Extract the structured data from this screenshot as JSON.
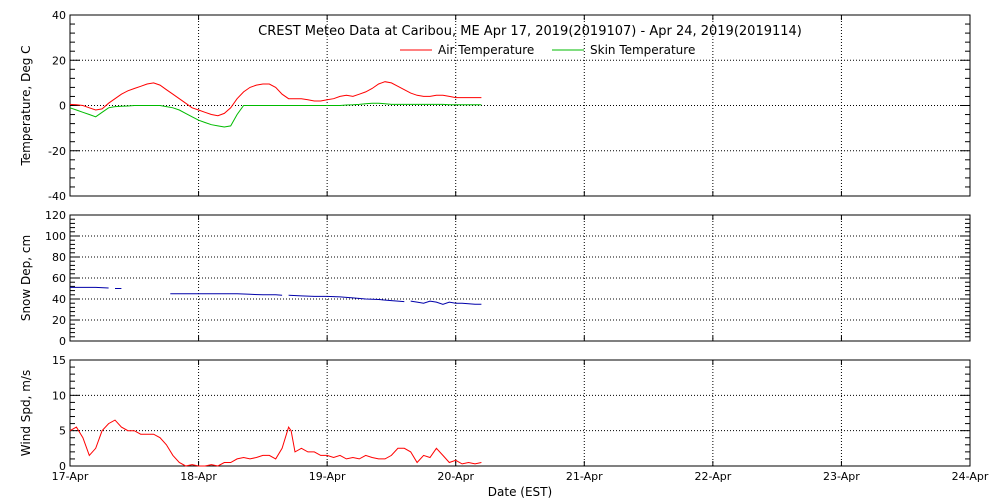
{
  "title": "CREST Meteo Data at Caribou, ME   Apr 17, 2019(2019107) - Apr 24, 2019(2019114)",
  "colors": {
    "air": "#ff0000",
    "skin": "#00bb00",
    "snow": "#0000aa",
    "wind": "#ff0000",
    "frame": "#000000"
  },
  "chart_data": [
    {
      "type": "line",
      "ylabel": "Temperature, Deg C",
      "xlabel": "",
      "ylim": [
        -40,
        40
      ],
      "yticks": [
        "40",
        "20",
        "0",
        "-20",
        "-40"
      ],
      "grid": true,
      "legend_placement": "top-center",
      "series": [
        {
          "name": "Air Temperature",
          "color": "#ff0000",
          "x": [
            0,
            0.05,
            0.1,
            0.15,
            0.2,
            0.25,
            0.3,
            0.35,
            0.4,
            0.45,
            0.5,
            0.55,
            0.6,
            0.65,
            0.7,
            0.75,
            0.8,
            0.85,
            0.9,
            0.95,
            1.0,
            1.05,
            1.1,
            1.15,
            1.2,
            1.25,
            1.3,
            1.35,
            1.4,
            1.45,
            1.5,
            1.55,
            1.6,
            1.65,
            1.7,
            1.75,
            1.8,
            1.85,
            1.9,
            1.95,
            2.0,
            2.05,
            2.1,
            2.15,
            2.2,
            2.25,
            2.3,
            2.35,
            2.4,
            2.45,
            2.5,
            2.55,
            2.6,
            2.65,
            2.7,
            2.75,
            2.8,
            2.85,
            2.9,
            2.95,
            3.0,
            3.05,
            3.1,
            3.15,
            3.2
          ],
          "values": [
            0.5,
            0.3,
            0,
            -1,
            -2,
            -1.5,
            1,
            3,
            5,
            6.5,
            7.5,
            8.5,
            9.5,
            10,
            9,
            7,
            5,
            3,
            1,
            -1,
            -2,
            -3,
            -4,
            -4.5,
            -3.5,
            -1,
            3,
            6,
            8,
            9,
            9.5,
            9.5,
            8,
            5,
            3,
            3,
            3,
            2.5,
            2,
            2,
            2.5,
            3,
            4,
            4.5,
            4,
            5,
            6,
            7.5,
            9.5,
            10.5,
            10,
            8.5,
            7,
            5.5,
            4.5,
            4,
            4,
            4.5,
            4.5,
            4,
            3.5,
            3.5,
            3.5,
            3.5,
            3.5
          ]
        },
        {
          "name": "Skin Temperature",
          "color": "#00bb00",
          "x": [
            0,
            0.05,
            0.1,
            0.15,
            0.2,
            0.25,
            0.3,
            0.35,
            0.4,
            0.45,
            0.5,
            0.55,
            0.6,
            0.65,
            0.7,
            0.75,
            0.8,
            0.85,
            0.9,
            0.95,
            1.0,
            1.05,
            1.1,
            1.15,
            1.2,
            1.25,
            1.3,
            1.35,
            1.4,
            1.45,
            1.5,
            1.55,
            1.6,
            1.65,
            1.7,
            1.75,
            1.8,
            1.85,
            1.9,
            1.95,
            2.0,
            2.05,
            2.1,
            2.15,
            2.2,
            2.25,
            2.3,
            2.35,
            2.4,
            2.45,
            2.5,
            2.55,
            2.6,
            2.65,
            2.7,
            2.75,
            2.8,
            2.85,
            2.9,
            2.95,
            3.0,
            3.05,
            3.1,
            3.15,
            3.2
          ],
          "values": [
            -1,
            -2,
            -3,
            -4,
            -5,
            -3,
            -1,
            -0.5,
            -0.3,
            -0.2,
            0,
            0,
            0,
            0,
            0,
            -0.5,
            -1,
            -2,
            -3.5,
            -5,
            -6.5,
            -7.5,
            -8.5,
            -9,
            -9.5,
            -9,
            -4,
            0,
            0,
            0,
            0,
            0,
            0,
            0,
            0,
            0,
            0,
            0,
            0,
            0,
            0,
            0,
            0,
            0.2,
            0.3,
            0.5,
            0.8,
            1,
            1,
            0.8,
            0.5,
            0.5,
            0.5,
            0.5,
            0.5,
            0.5,
            0.5,
            0.5,
            0.5,
            0.3,
            0.3,
            0.3,
            0.3,
            0.3,
            0.3
          ]
        }
      ]
    },
    {
      "type": "line",
      "ylabel": "Snow Dep, cm",
      "xlabel": "",
      "ylim": [
        0,
        120
      ],
      "yticks": [
        "120",
        "100",
        "80",
        "60",
        "40",
        "20",
        "0"
      ],
      "grid": true,
      "series": [
        {
          "color": "#0000aa",
          "segments": [
            {
              "x": [
                0,
                0.1,
                0.2,
                0.3
              ],
              "values": [
                51,
                51,
                51,
                50.5
              ]
            },
            {
              "x": [
                0.35,
                0.4
              ],
              "values": [
                50,
                50
              ]
            },
            {
              "x": [
                0.78,
                0.9,
                1.0,
                1.1,
                1.2,
                1.3,
                1.4,
                1.5,
                1.6,
                1.65
              ],
              "values": [
                45,
                45,
                45,
                45,
                45,
                45,
                44.5,
                44,
                44,
                43.5
              ]
            },
            {
              "x": [
                1.7,
                1.8,
                1.9,
                2.0,
                2.1,
                2.2,
                2.3,
                2.4,
                2.5,
                2.6
              ],
              "values": [
                43.5,
                43,
                42.5,
                42.5,
                42,
                41,
                40,
                39.5,
                38.5,
                37.5
              ]
            },
            {
              "x": [
                2.65,
                2.7,
                2.75,
                2.8,
                2.85,
                2.9,
                2.95,
                3.0,
                3.05,
                3.1,
                3.15,
                3.2
              ],
              "values": [
                38,
                37,
                36,
                38,
                37,
                35,
                37,
                36,
                36,
                35.5,
                35,
                35
              ]
            }
          ]
        }
      ]
    },
    {
      "type": "line",
      "ylabel": "Wind Spd, m/s",
      "xlabel": "Date (EST)",
      "ylim": [
        0,
        15
      ],
      "yticks": [
        "15",
        "10",
        "5",
        "0"
      ],
      "grid": true,
      "categories": [
        "17-Apr",
        "18-Apr",
        "19-Apr",
        "20-Apr",
        "21-Apr",
        "22-Apr",
        "23-Apr",
        "24-Apr"
      ],
      "series": [
        {
          "color": "#ff0000",
          "x": [
            0,
            0.05,
            0.1,
            0.15,
            0.2,
            0.25,
            0.3,
            0.35,
            0.4,
            0.45,
            0.5,
            0.55,
            0.6,
            0.65,
            0.7,
            0.75,
            0.8,
            0.85,
            0.9,
            0.95,
            1.0,
            1.05,
            1.1,
            1.15,
            1.2,
            1.25,
            1.3,
            1.35,
            1.4,
            1.45,
            1.5,
            1.55,
            1.6,
            1.65,
            1.7,
            1.72,
            1.75,
            1.8,
            1.85,
            1.9,
            1.95,
            2.0,
            2.05,
            2.1,
            2.15,
            2.2,
            2.25,
            2.3,
            2.35,
            2.4,
            2.45,
            2.5,
            2.55,
            2.6,
            2.65,
            2.7,
            2.75,
            2.8,
            2.85,
            2.9,
            2.95,
            3.0,
            3.05,
            3.1,
            3.15,
            3.2
          ],
          "values": [
            5,
            5.5,
            4,
            1.5,
            2.5,
            5,
            6,
            6.5,
            5.5,
            5,
            5,
            4.5,
            4.5,
            4.5,
            4,
            3,
            1.5,
            0.5,
            0,
            0.2,
            0,
            0,
            0.2,
            0,
            0.5,
            0.5,
            1,
            1.2,
            1,
            1.2,
            1.5,
            1.5,
            1,
            2.5,
            5.5,
            5,
            2,
            2.5,
            2,
            2,
            1.5,
            1.5,
            1.2,
            1.5,
            1,
            1.2,
            1,
            1.5,
            1.2,
            1,
            1,
            1.5,
            2.5,
            2.5,
            2,
            0.5,
            1.5,
            1.2,
            2.5,
            1.5,
            0.5,
            0.8,
            0.3,
            0.5,
            0.3,
            0.5
          ]
        }
      ]
    }
  ]
}
